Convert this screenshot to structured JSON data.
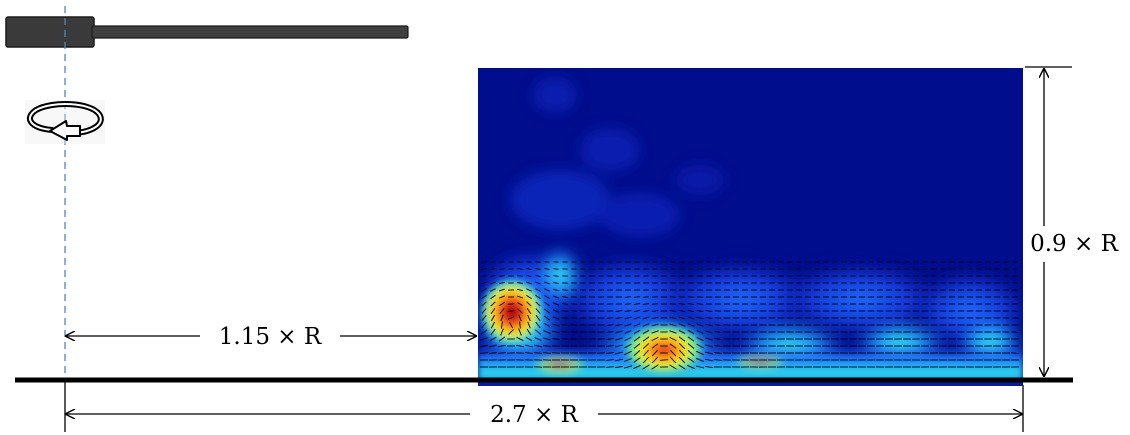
{
  "labels": {
    "axis_distance": "1.15 × R",
    "window_width": "2.7 × R",
    "window_height": "0.9 × R"
  },
  "icons": {
    "rotor": "rotor-blade-icon",
    "rotation": "rotation-arrow-icon"
  },
  "colors": {
    "background_field": "#000d8c",
    "axis_dashed": "#4a86c8",
    "rotor_body": "#3a3a3a",
    "ground": "#000000"
  }
}
